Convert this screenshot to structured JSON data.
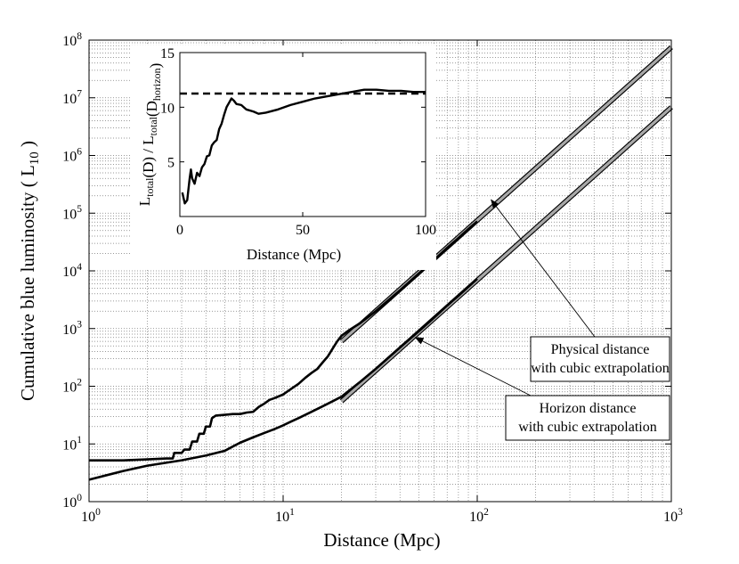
{
  "chart_data": [
    {
      "type": "line",
      "id": "main",
      "xscale": "log",
      "yscale": "log",
      "xlim": [
        1,
        1000
      ],
      "ylim": [
        1,
        100000000
      ],
      "xlabel": "Distance (Mpc)",
      "ylabel": "Cumulative blue luminosity ( L",
      "ylabel_sub": "10",
      "ylabel_end": " )",
      "grid": true,
      "x_ticks": [
        {
          "value": 1,
          "base": "10",
          "exp": "0"
        },
        {
          "value": 10,
          "base": "10",
          "exp": "1"
        },
        {
          "value": 100,
          "base": "10",
          "exp": "2"
        },
        {
          "value": 1000,
          "base": "10",
          "exp": "3"
        }
      ],
      "y_ticks": [
        {
          "value": 1,
          "base": "10",
          "exp": "0"
        },
        {
          "value": 10,
          "base": "10",
          "exp": "1"
        },
        {
          "value": 100,
          "base": "10",
          "exp": "2"
        },
        {
          "value": 1000,
          "base": "10",
          "exp": "3"
        },
        {
          "value": 10000,
          "base": "10",
          "exp": "4"
        },
        {
          "value": 100000,
          "base": "10",
          "exp": "5"
        },
        {
          "value": 1000000,
          "base": "10",
          "exp": "6"
        },
        {
          "value": 10000000,
          "base": "10",
          "exp": "7"
        },
        {
          "value": 100000000,
          "base": "10",
          "exp": "8"
        }
      ],
      "series": [
        {
          "name": "Physical distance",
          "style": "solid-thick",
          "points": [
            [
              1,
              5.2
            ],
            [
              1.5,
              5.2
            ],
            [
              2,
              5.4
            ],
            [
              2.5,
              5.6
            ],
            [
              2.7,
              5.6
            ],
            [
              2.75,
              7
            ],
            [
              3,
              7
            ],
            [
              3.1,
              8
            ],
            [
              3.3,
              8
            ],
            [
              3.4,
              11
            ],
            [
              3.6,
              11
            ],
            [
              3.7,
              15
            ],
            [
              3.9,
              15
            ],
            [
              4,
              20
            ],
            [
              4.2,
              20
            ],
            [
              4.3,
              28
            ],
            [
              4.5,
              31
            ],
            [
              5,
              32
            ],
            [
              5.5,
              33
            ],
            [
              6,
              33
            ],
            [
              6.5,
              35
            ],
            [
              7,
              36
            ],
            [
              7.5,
              44
            ],
            [
              8,
              50
            ],
            [
              8.5,
              58
            ],
            [
              9,
              62
            ],
            [
              10,
              72
            ],
            [
              11,
              90
            ],
            [
              12,
              110
            ],
            [
              13,
              140
            ],
            [
              14,
              170
            ],
            [
              15,
              200
            ],
            [
              16,
              260
            ],
            [
              17,
              330
            ],
            [
              18,
              450
            ],
            [
              19,
              600
            ],
            [
              20,
              750
            ],
            [
              22,
              950
            ],
            [
              25,
              1250
            ],
            [
              30,
              2000
            ],
            [
              40,
              4600
            ],
            [
              50,
              9000
            ],
            [
              60,
              15500
            ],
            [
              70,
              25000
            ],
            [
              80,
              37000
            ],
            [
              90,
              53000
            ],
            [
              100,
              72000
            ]
          ]
        },
        {
          "name": "Horizon distance",
          "style": "solid-thick",
          "points": [
            [
              1,
              2.4
            ],
            [
              1.5,
              3.4
            ],
            [
              2,
              4.2
            ],
            [
              3,
              5.2
            ],
            [
              4,
              6.3
            ],
            [
              5,
              7.6
            ],
            [
              5.5,
              9
            ],
            [
              6,
              10.5
            ],
            [
              7,
              13
            ],
            [
              8,
              15.5
            ],
            [
              9,
              18
            ],
            [
              10,
              21
            ],
            [
              11,
              24.5
            ],
            [
              12,
              28
            ],
            [
              14,
              36
            ],
            [
              16,
              45
            ],
            [
              18,
              55
            ],
            [
              20,
              66
            ],
            [
              25,
              120
            ],
            [
              30,
              200
            ],
            [
              40,
              470
            ],
            [
              50,
              900
            ],
            [
              60,
              1550
            ],
            [
              70,
              2500
            ],
            [
              80,
              3700
            ],
            [
              90,
              5300
            ],
            [
              100,
              7300
            ]
          ]
        },
        {
          "name": "Physical distance with cubic extrapolation",
          "style": "double",
          "points": [
            [
              20,
              600
            ],
            [
              1000,
              75000000
            ]
          ]
        },
        {
          "name": "Horizon distance with cubic extrapolation",
          "style": "double",
          "points": [
            [
              20,
              55
            ],
            [
              1000,
              6875000
            ]
          ]
        }
      ],
      "annotations": [
        {
          "lines": [
            "Physical distance",
            "with cubic extrapolation"
          ],
          "arrow_to": [
            118,
            170000
          ]
        },
        {
          "lines": [
            "Horizon distance",
            "with cubic extrapolation"
          ],
          "arrow_to": [
            48,
            700
          ]
        }
      ]
    },
    {
      "type": "line",
      "id": "inset",
      "xscale": "linear",
      "yscale": "linear",
      "xlim": [
        0,
        100
      ],
      "ylim": [
        0,
        15
      ],
      "xlabel": "Distance (Mpc)",
      "ylabel_parts": [
        {
          "text": "L",
          "sub": false
        },
        {
          "text": "total",
          "sub": true
        },
        {
          "text": "(D) / L",
          "sub": false
        },
        {
          "text": "total",
          "sub": true
        },
        {
          "text": "(D",
          "sub": false
        },
        {
          "text": "horizon",
          "sub": true
        },
        {
          "text": ")",
          "sub": false
        }
      ],
      "x_ticks": [
        0,
        50,
        100
      ],
      "y_ticks": [
        0,
        5,
        10,
        15
      ],
      "tick_labels_x": [
        "0",
        "50",
        "100"
      ],
      "tick_labels_y": [
        "",
        "5",
        "10",
        "15"
      ],
      "grid": false,
      "series": [
        {
          "name": "ratio",
          "style": "solid",
          "points": [
            [
              1,
              2.2
            ],
            [
              2,
              1.2
            ],
            [
              3,
              1.5
            ],
            [
              4,
              3.5
            ],
            [
              4.5,
              4.3
            ],
            [
              5,
              3.5
            ],
            [
              6,
              3
            ],
            [
              7,
              4
            ],
            [
              8,
              3.7
            ],
            [
              9,
              4.5
            ],
            [
              10,
              4.8
            ],
            [
              11,
              5.5
            ],
            [
              12,
              5.6
            ],
            [
              13,
              6.5
            ],
            [
              14,
              6.8
            ],
            [
              15,
              7
            ],
            [
              16,
              8
            ],
            [
              17,
              8.5
            ],
            [
              18,
              9.3
            ],
            [
              19,
              10
            ],
            [
              20,
              10.4
            ],
            [
              21,
              10.8
            ],
            [
              22,
              10.6
            ],
            [
              23,
              10.3
            ],
            [
              25,
              10.2
            ],
            [
              27,
              9.8
            ],
            [
              30,
              9.6
            ],
            [
              32,
              9.4
            ],
            [
              35,
              9.5
            ],
            [
              40,
              9.8
            ],
            [
              45,
              10.2
            ],
            [
              50,
              10.5
            ],
            [
              55,
              10.8
            ],
            [
              60,
              11
            ],
            [
              65,
              11.2
            ],
            [
              70,
              11.4
            ],
            [
              75,
              11.6
            ],
            [
              80,
              11.6
            ],
            [
              85,
              11.5
            ],
            [
              90,
              11.5
            ],
            [
              95,
              11.4
            ],
            [
              100,
              11.4
            ]
          ]
        },
        {
          "name": "asymptote",
          "style": "dashed",
          "points": [
            [
              0,
              11.25
            ],
            [
              100,
              11.25
            ]
          ]
        }
      ]
    }
  ]
}
